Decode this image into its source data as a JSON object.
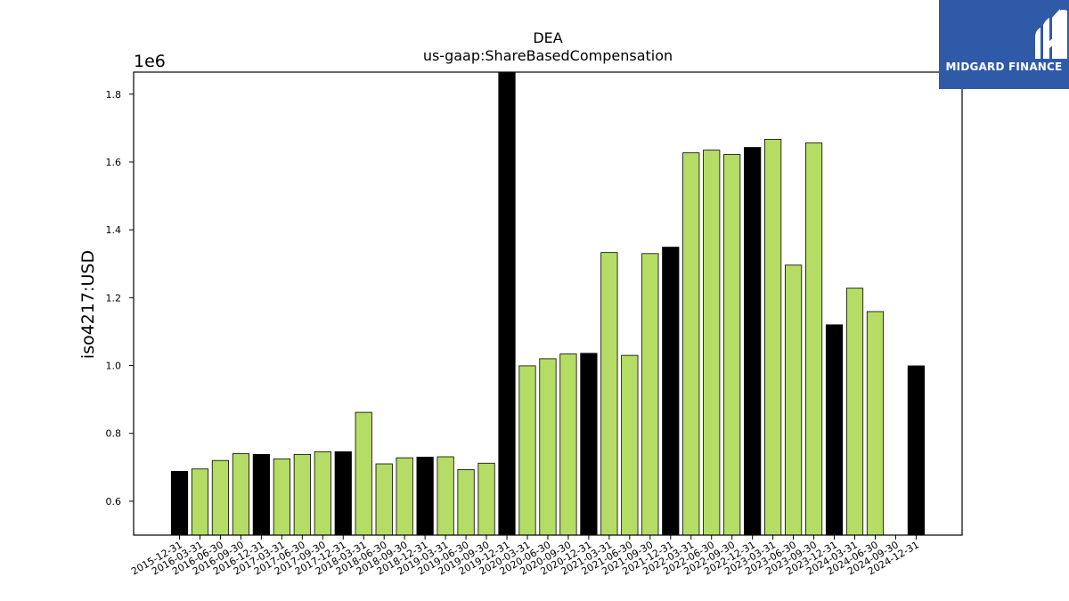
{
  "chart_data": {
    "type": "bar",
    "title": "DEA",
    "subtitle": "us-gaap:ShareBasedCompensation",
    "ylabel": "iso4217:USD",
    "xlabel": "",
    "scale_label": "1e6",
    "ylim": [
      0.5,
      1.865
    ],
    "yticks": [
      0.6,
      0.8,
      1.0,
      1.2,
      1.4,
      1.6,
      1.8
    ],
    "grid": false,
    "colors": {
      "quarterly": "#b5dc64",
      "annual": "#000000",
      "edge": "#000000"
    },
    "categories": [
      "2015-12-31",
      "2016-03-31",
      "2016-06-30",
      "2016-09-30",
      "2016-12-31",
      "2017-03-31",
      "2017-06-30",
      "2017-09-30",
      "2017-12-31",
      "2018-03-31",
      "2018-06-30",
      "2018-09-30",
      "2018-12-31",
      "2019-03-31",
      "2019-06-30",
      "2019-09-30",
      "2019-12-31",
      "2020-03-31",
      "2020-06-30",
      "2020-09-30",
      "2020-12-31",
      "2021-03-31",
      "2021-06-30",
      "2021-09-30",
      "2021-12-31",
      "2022-03-31",
      "2022-06-30",
      "2022-09-30",
      "2022-12-31",
      "2023-03-31",
      "2023-06-30",
      "2023-09-30",
      "2023-12-31",
      "2024-03-31",
      "2024-06-30",
      "2024-09-30",
      "2024-12-31"
    ],
    "values": [
      0.688,
      0.695,
      0.72,
      0.74,
      0.738,
      0.725,
      0.738,
      0.746,
      0.746,
      0.862,
      0.71,
      0.728,
      0.73,
      0.731,
      0.693,
      0.712,
      1.865,
      0.999,
      1.02,
      1.034,
      1.036,
      1.333,
      1.03,
      1.33,
      1.349,
      1.627,
      1.635,
      1.622,
      1.643,
      1.667,
      1.296,
      1.656,
      1.12,
      1.228,
      1.159,
      null,
      0.999
    ],
    "bar_kind": [
      "annual",
      "quarterly",
      "quarterly",
      "quarterly",
      "annual",
      "quarterly",
      "quarterly",
      "quarterly",
      "annual",
      "quarterly",
      "quarterly",
      "quarterly",
      "annual",
      "quarterly",
      "quarterly",
      "quarterly",
      "annual",
      "quarterly",
      "quarterly",
      "quarterly",
      "annual",
      "quarterly",
      "quarterly",
      "quarterly",
      "annual",
      "quarterly",
      "quarterly",
      "quarterly",
      "annual",
      "quarterly",
      "quarterly",
      "quarterly",
      "annual",
      "quarterly",
      "quarterly",
      "quarterly",
      "annual"
    ]
  },
  "logo": {
    "text": "MIDGARD FINANCE",
    "color": "#2f5aa8"
  }
}
